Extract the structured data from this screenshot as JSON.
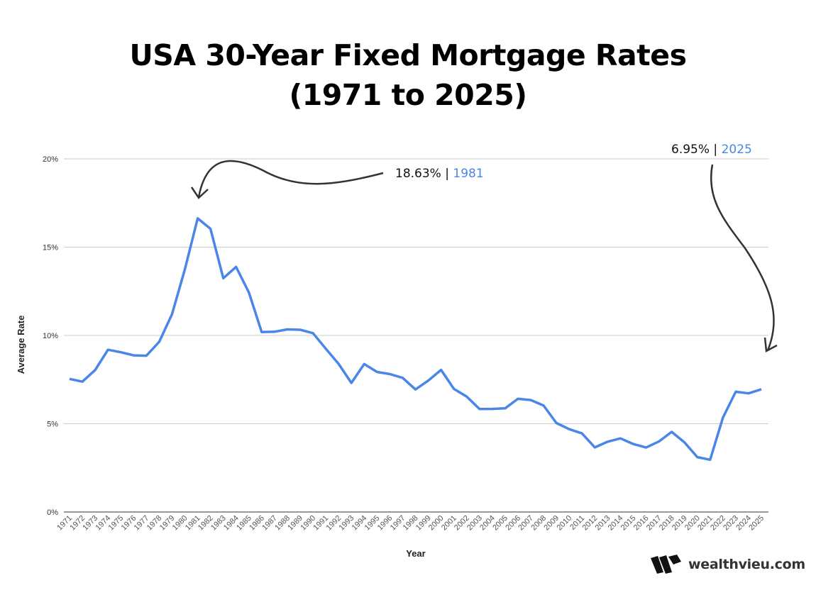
{
  "chart_data": {
    "type": "line",
    "title": [
      "USA 30-Year Fixed Mortgage Rates",
      "(1971 to 2025)"
    ],
    "xlabel": "Year",
    "ylabel": "Average Rate",
    "ylim": [
      0,
      20
    ],
    "yticks": [
      "0%",
      "5%",
      "10%",
      "15%",
      "20%"
    ],
    "ytick_values": [
      0,
      5,
      10,
      15,
      20
    ],
    "grid": true,
    "line_color": "#4a86e8",
    "x": [
      1971,
      1972,
      1973,
      1974,
      1975,
      1976,
      1977,
      1978,
      1979,
      1980,
      1981,
      1982,
      1983,
      1984,
      1985,
      1986,
      1987,
      1988,
      1989,
      1990,
      1991,
      1992,
      1993,
      1994,
      1995,
      1996,
      1997,
      1998,
      1999,
      2000,
      2001,
      2002,
      2003,
      2004,
      2005,
      2006,
      2007,
      2008,
      2009,
      2010,
      2011,
      2012,
      2013,
      2014,
      2015,
      2016,
      2017,
      2018,
      2019,
      2020,
      2021,
      2022,
      2023,
      2024,
      2025
    ],
    "values": [
      7.54,
      7.38,
      8.04,
      9.19,
      9.05,
      8.87,
      8.85,
      9.64,
      11.2,
      13.74,
      16.63,
      16.04,
      13.24,
      13.88,
      12.43,
      10.19,
      10.21,
      10.34,
      10.32,
      10.13,
      9.25,
      8.39,
      7.31,
      8.38,
      7.93,
      7.81,
      7.6,
      6.94,
      7.44,
      8.05,
      6.97,
      6.54,
      5.83,
      5.84,
      5.87,
      6.41,
      6.34,
      6.03,
      5.04,
      4.69,
      4.45,
      3.66,
      3.98,
      4.17,
      3.85,
      3.65,
      3.99,
      4.54,
      3.94,
      3.11,
      2.96,
      5.34,
      6.81,
      6.72,
      6.95
    ],
    "annotations": [
      {
        "value": "18.63%",
        "sep": "|",
        "year": "1981"
      },
      {
        "value": "6.95%",
        "sep": "|",
        "year": "2025"
      }
    ]
  },
  "brand": {
    "name": "wealthvieu.com",
    "color": "#333333"
  }
}
